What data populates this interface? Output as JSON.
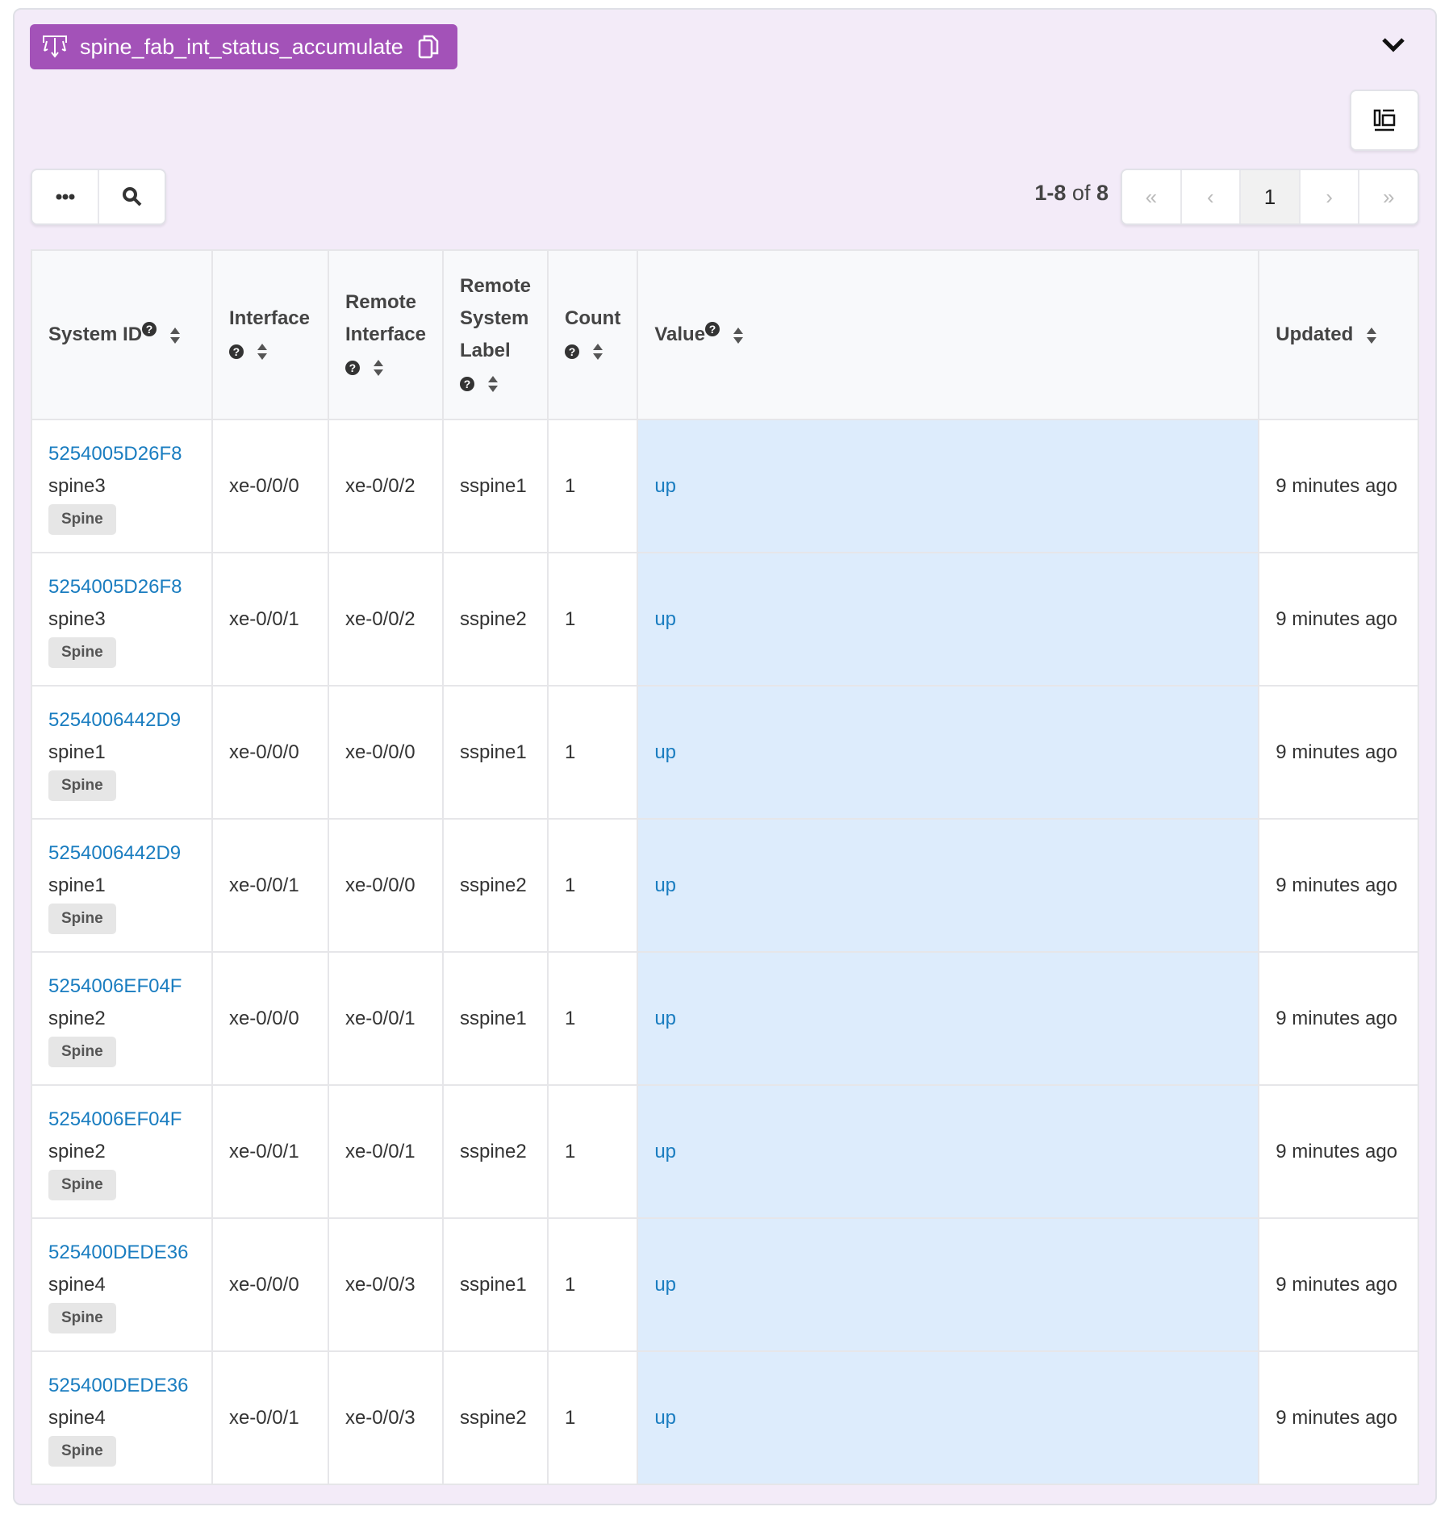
{
  "header": {
    "title": "spine_fab_int_status_accumulate"
  },
  "pagination": {
    "range": "1-8",
    "of_label": "of",
    "total": "8",
    "first": "«",
    "prev": "‹",
    "current": "1",
    "next": "›",
    "last": "»"
  },
  "colors": {
    "accent": "#a352b8",
    "link": "#1a7dc0",
    "value_bg": "#ddecfc"
  },
  "table": {
    "columns": [
      "System ID",
      "Interface",
      "Remote Interface",
      "Remote System Label",
      "Count",
      "Value",
      "Updated"
    ],
    "rows": [
      {
        "system_id": "5254005D26F8",
        "label": "spine3",
        "role": "Spine",
        "interface": "xe-0/0/0",
        "remote_interface": "xe-0/0/2",
        "remote_label": "sspine1",
        "count": "1",
        "value": "up",
        "updated": "9 minutes ago"
      },
      {
        "system_id": "5254005D26F8",
        "label": "spine3",
        "role": "Spine",
        "interface": "xe-0/0/1",
        "remote_interface": "xe-0/0/2",
        "remote_label": "sspine2",
        "count": "1",
        "value": "up",
        "updated": "9 minutes ago"
      },
      {
        "system_id": "5254006442D9",
        "label": "spine1",
        "role": "Spine",
        "interface": "xe-0/0/0",
        "remote_interface": "xe-0/0/0",
        "remote_label": "sspine1",
        "count": "1",
        "value": "up",
        "updated": "9 minutes ago"
      },
      {
        "system_id": "5254006442D9",
        "label": "spine1",
        "role": "Spine",
        "interface": "xe-0/0/1",
        "remote_interface": "xe-0/0/0",
        "remote_label": "sspine2",
        "count": "1",
        "value": "up",
        "updated": "9 minutes ago"
      },
      {
        "system_id": "5254006EF04F",
        "label": "spine2",
        "role": "Spine",
        "interface": "xe-0/0/0",
        "remote_interface": "xe-0/0/1",
        "remote_label": "sspine1",
        "count": "1",
        "value": "up",
        "updated": "9 minutes ago"
      },
      {
        "system_id": "5254006EF04F",
        "label": "spine2",
        "role": "Spine",
        "interface": "xe-0/0/1",
        "remote_interface": "xe-0/0/1",
        "remote_label": "sspine2",
        "count": "1",
        "value": "up",
        "updated": "9 minutes ago"
      },
      {
        "system_id": "525400DEDE36",
        "label": "spine4",
        "role": "Spine",
        "interface": "xe-0/0/0",
        "remote_interface": "xe-0/0/3",
        "remote_label": "sspine1",
        "count": "1",
        "value": "up",
        "updated": "9 minutes ago"
      },
      {
        "system_id": "525400DEDE36",
        "label": "spine4",
        "role": "Spine",
        "interface": "xe-0/0/1",
        "remote_interface": "xe-0/0/3",
        "remote_label": "sspine2",
        "count": "1",
        "value": "up",
        "updated": "9 minutes ago"
      }
    ]
  }
}
